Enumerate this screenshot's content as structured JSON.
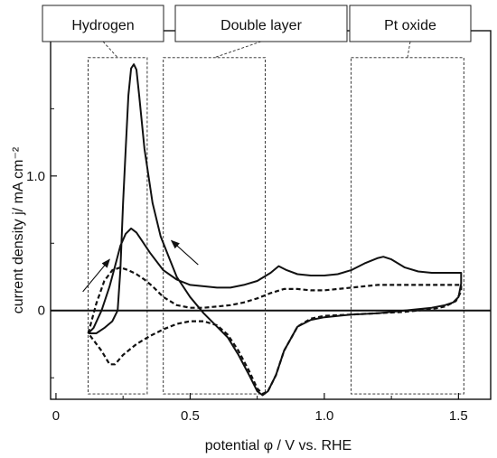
{
  "chart_data": {
    "type": "line",
    "title": "",
    "xlabel": "potential φ  / V vs. RHE",
    "ylabel": "current density j/ mA cm⁻²",
    "xlim": [
      -0.02,
      1.62
    ],
    "ylim": [
      -0.66,
      2.08
    ],
    "x_ticks": [
      {
        "value": 0,
        "label": "0"
      },
      {
        "value": 0.5,
        "label": "0.5"
      },
      {
        "value": 1.0,
        "label": "1.0"
      },
      {
        "value": 1.5,
        "label": "1.5"
      }
    ],
    "y_ticks": [
      {
        "value": 0,
        "label": "0"
      },
      {
        "value": 1.0,
        "label": "1.0"
      }
    ],
    "grid": false,
    "zero_line": true,
    "regions": [
      {
        "label": "Hydrogen",
        "x_range": [
          0.12,
          0.34
        ],
        "y_range": [
          -0.62,
          1.88
        ]
      },
      {
        "label": "Double layer",
        "x_range": [
          0.4,
          0.78
        ],
        "y_range": [
          -0.62,
          1.88
        ]
      },
      {
        "label": "Pt oxide",
        "x_range": [
          1.1,
          1.52
        ],
        "y_range": [
          -0.62,
          1.88
        ]
      }
    ],
    "series": [
      {
        "style": "solid",
        "points": [
          [
            0.12,
            -0.17
          ],
          [
            0.14,
            -0.13
          ],
          [
            0.17,
            0.0
          ],
          [
            0.2,
            0.18
          ],
          [
            0.22,
            0.33
          ],
          [
            0.24,
            0.48
          ],
          [
            0.26,
            0.57
          ],
          [
            0.28,
            0.61
          ],
          [
            0.3,
            0.58
          ],
          [
            0.32,
            0.52
          ],
          [
            0.35,
            0.43
          ],
          [
            0.4,
            0.3
          ],
          [
            0.45,
            0.23
          ],
          [
            0.5,
            0.19
          ],
          [
            0.55,
            0.18
          ],
          [
            0.6,
            0.17
          ],
          [
            0.65,
            0.17
          ],
          [
            0.7,
            0.19
          ],
          [
            0.75,
            0.22
          ],
          [
            0.8,
            0.28
          ],
          [
            0.83,
            0.33
          ],
          [
            0.86,
            0.3
          ],
          [
            0.9,
            0.27
          ],
          [
            0.95,
            0.26
          ],
          [
            1.0,
            0.26
          ],
          [
            1.05,
            0.27
          ],
          [
            1.1,
            0.3
          ],
          [
            1.15,
            0.35
          ],
          [
            1.2,
            0.39
          ],
          [
            1.22,
            0.4
          ],
          [
            1.25,
            0.38
          ],
          [
            1.3,
            0.32
          ],
          [
            1.35,
            0.29
          ],
          [
            1.4,
            0.28
          ],
          [
            1.45,
            0.28
          ],
          [
            1.51,
            0.28
          ],
          [
            1.51,
            0.2
          ],
          [
            1.5,
            0.1
          ],
          [
            1.48,
            0.06
          ],
          [
            1.45,
            0.04
          ],
          [
            1.4,
            0.02
          ],
          [
            1.3,
            0.0
          ],
          [
            1.2,
            -0.02
          ],
          [
            1.1,
            -0.03
          ],
          [
            1.0,
            -0.05
          ],
          [
            0.95,
            -0.07
          ],
          [
            0.9,
            -0.12
          ],
          [
            0.85,
            -0.3
          ],
          [
            0.82,
            -0.48
          ],
          [
            0.79,
            -0.6
          ],
          [
            0.77,
            -0.63
          ],
          [
            0.75,
            -0.6
          ],
          [
            0.72,
            -0.48
          ],
          [
            0.68,
            -0.33
          ],
          [
            0.64,
            -0.2
          ],
          [
            0.6,
            -0.12
          ],
          [
            0.55,
            -0.02
          ],
          [
            0.5,
            0.1
          ],
          [
            0.45,
            0.25
          ],
          [
            0.42,
            0.4
          ],
          [
            0.39,
            0.55
          ],
          [
            0.36,
            0.8
          ],
          [
            0.33,
            1.2
          ],
          [
            0.31,
            1.6
          ],
          [
            0.3,
            1.79
          ],
          [
            0.29,
            1.83
          ],
          [
            0.28,
            1.8
          ],
          [
            0.27,
            1.6
          ],
          [
            0.26,
            1.2
          ],
          [
            0.25,
            0.8
          ],
          [
            0.24,
            0.3
          ],
          [
            0.23,
            0.0
          ],
          [
            0.21,
            -0.08
          ],
          [
            0.18,
            -0.13
          ],
          [
            0.15,
            -0.17
          ],
          [
            0.12,
            -0.17
          ]
        ]
      },
      {
        "style": "dashed",
        "points": [
          [
            0.12,
            -0.17
          ],
          [
            0.15,
            0.05
          ],
          [
            0.18,
            0.22
          ],
          [
            0.21,
            0.3
          ],
          [
            0.24,
            0.32
          ],
          [
            0.27,
            0.3
          ],
          [
            0.3,
            0.27
          ],
          [
            0.33,
            0.23
          ],
          [
            0.36,
            0.18
          ],
          [
            0.4,
            0.1
          ],
          [
            0.45,
            0.04
          ],
          [
            0.5,
            0.02
          ],
          [
            0.55,
            0.02
          ],
          [
            0.6,
            0.03
          ],
          [
            0.65,
            0.04
          ],
          [
            0.7,
            0.06
          ],
          [
            0.75,
            0.09
          ],
          [
            0.8,
            0.13
          ],
          [
            0.85,
            0.16
          ],
          [
            0.9,
            0.16
          ],
          [
            0.95,
            0.15
          ],
          [
            1.0,
            0.15
          ],
          [
            1.05,
            0.16
          ],
          [
            1.1,
            0.17
          ],
          [
            1.15,
            0.18
          ],
          [
            1.2,
            0.19
          ],
          [
            1.3,
            0.19
          ],
          [
            1.4,
            0.19
          ],
          [
            1.51,
            0.19
          ],
          [
            1.51,
            0.14
          ],
          [
            1.49,
            0.07
          ],
          [
            1.45,
            0.03
          ],
          [
            1.4,
            0.01
          ],
          [
            1.3,
            -0.01
          ],
          [
            1.2,
            -0.02
          ],
          [
            1.1,
            -0.03
          ],
          [
            1.0,
            -0.04
          ],
          [
            0.95,
            -0.06
          ],
          [
            0.9,
            -0.12
          ],
          [
            0.85,
            -0.3
          ],
          [
            0.82,
            -0.48
          ],
          [
            0.79,
            -0.6
          ],
          [
            0.77,
            -0.62
          ],
          [
            0.75,
            -0.58
          ],
          [
            0.72,
            -0.45
          ],
          [
            0.68,
            -0.3
          ],
          [
            0.64,
            -0.18
          ],
          [
            0.6,
            -0.11
          ],
          [
            0.55,
            -0.08
          ],
          [
            0.5,
            -0.08
          ],
          [
            0.45,
            -0.1
          ],
          [
            0.4,
            -0.14
          ],
          [
            0.35,
            -0.19
          ],
          [
            0.3,
            -0.25
          ],
          [
            0.25,
            -0.33
          ],
          [
            0.22,
            -0.4
          ],
          [
            0.2,
            -0.4
          ],
          [
            0.17,
            -0.3
          ],
          [
            0.14,
            -0.22
          ],
          [
            0.12,
            -0.17
          ]
        ]
      }
    ],
    "arrows": [
      {
        "from": [
          0.1,
          0.14
        ],
        "to": [
          0.2,
          0.38
        ]
      },
      {
        "from": [
          0.53,
          0.34
        ],
        "to": [
          0.43,
          0.52
        ]
      }
    ]
  }
}
